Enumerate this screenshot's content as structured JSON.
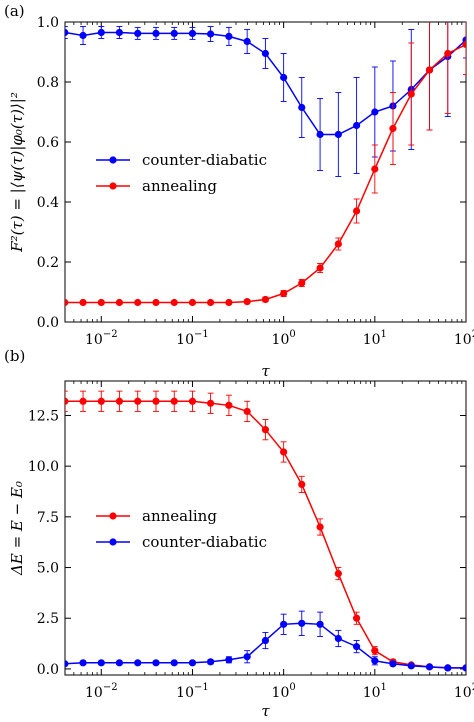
{
  "chart_data": [
    {
      "panel_label": "(a)",
      "type": "line",
      "xscale": "log",
      "xlim": [
        0.004,
        100
      ],
      "ylim": [
        0,
        1.0
      ],
      "xlabel": "τ",
      "ylabel": "F²(τ) = |⟨ψ(τ)|φ₀(τ)⟩|²",
      "xticks": [
        {
          "value": 0.01,
          "base": "10",
          "exp": "−2"
        },
        {
          "value": 0.1,
          "base": "10",
          "exp": "−1"
        },
        {
          "value": 1,
          "base": "10",
          "exp": "0"
        },
        {
          "value": 10,
          "base": "10",
          "exp": "1"
        },
        {
          "value": 100,
          "base": "10",
          "exp": "2"
        }
      ],
      "yticks": [
        {
          "value": 0.0,
          "label": "0.0"
        },
        {
          "value": 0.2,
          "label": "0.2"
        },
        {
          "value": 0.4,
          "label": "0.4"
        },
        {
          "value": 0.6,
          "label": "0.6"
        },
        {
          "value": 0.8,
          "label": "0.8"
        },
        {
          "value": 1.0,
          "label": "1.0"
        }
      ],
      "legend_position": "center-left",
      "series": [
        {
          "name": "counter-diabatic",
          "color": "#0000ff",
          "x": [
            0.00398,
            0.00631,
            0.01,
            0.0158,
            0.0251,
            0.0398,
            0.0631,
            0.1,
            0.158,
            0.251,
            0.398,
            0.631,
            1.0,
            1.58,
            2.51,
            3.98,
            6.31,
            10.0,
            15.8,
            25.1,
            39.8,
            63.1,
            100
          ],
          "y": [
            0.965,
            0.955,
            0.965,
            0.965,
            0.962,
            0.962,
            0.962,
            0.962,
            0.96,
            0.952,
            0.935,
            0.895,
            0.815,
            0.715,
            0.625,
            0.625,
            0.655,
            0.7,
            0.72,
            0.775,
            0.84,
            0.885,
            0.94
          ],
          "err": [
            0.02,
            0.03,
            0.02,
            0.02,
            0.02,
            0.02,
            0.02,
            0.02,
            0.025,
            0.03,
            0.04,
            0.05,
            0.08,
            0.1,
            0.12,
            0.14,
            0.16,
            0.15,
            0.15,
            0.2,
            0.2,
            0.2,
            0.06
          ]
        },
        {
          "name": "annealing",
          "color": "#ff0000",
          "x": [
            0.00398,
            0.00631,
            0.01,
            0.0158,
            0.0251,
            0.0398,
            0.0631,
            0.1,
            0.158,
            0.251,
            0.398,
            0.631,
            1.0,
            1.58,
            2.51,
            3.98,
            6.31,
            10.0,
            15.8,
            25.1,
            39.8,
            63.1,
            100
          ],
          "y": [
            0.065,
            0.065,
            0.065,
            0.065,
            0.065,
            0.065,
            0.065,
            0.065,
            0.065,
            0.065,
            0.068,
            0.075,
            0.095,
            0.13,
            0.18,
            0.26,
            0.37,
            0.51,
            0.645,
            0.76,
            0.84,
            0.895,
            0.925
          ],
          "err": [
            0.003,
            0.003,
            0.003,
            0.003,
            0.003,
            0.003,
            0.003,
            0.003,
            0.003,
            0.004,
            0.005,
            0.008,
            0.01,
            0.012,
            0.015,
            0.02,
            0.04,
            0.08,
            0.12,
            0.17,
            0.2,
            0.2,
            0.1
          ]
        }
      ]
    },
    {
      "panel_label": "(b)",
      "type": "line",
      "xscale": "log",
      "xlim": [
        0.004,
        100
      ],
      "ylim": [
        -0.3,
        14.2
      ],
      "xlabel": "τ",
      "ylabel": "ΔE = E − E₀",
      "xticks": [
        {
          "value": 0.01,
          "base": "10",
          "exp": "−2"
        },
        {
          "value": 0.1,
          "base": "10",
          "exp": "−1"
        },
        {
          "value": 1,
          "base": "10",
          "exp": "0"
        },
        {
          "value": 10,
          "base": "10",
          "exp": "1"
        },
        {
          "value": 100,
          "base": "10",
          "exp": "2"
        }
      ],
      "yticks": [
        {
          "value": 0.0,
          "label": "0.0"
        },
        {
          "value": 2.5,
          "label": "2.5"
        },
        {
          "value": 5.0,
          "label": "5.0"
        },
        {
          "value": 7.5,
          "label": "7.5"
        },
        {
          "value": 10.0,
          "label": "10.0"
        },
        {
          "value": 12.5,
          "label": "12.5"
        }
      ],
      "legend_position": "center-left",
      "series": [
        {
          "name": "annealing",
          "color": "#ff0000",
          "x": [
            0.00398,
            0.00631,
            0.01,
            0.0158,
            0.0251,
            0.0398,
            0.0631,
            0.1,
            0.158,
            0.251,
            0.398,
            0.631,
            1.0,
            1.58,
            2.51,
            3.98,
            6.31,
            10.0,
            15.8,
            25.1,
            39.8,
            63.1,
            100
          ],
          "y": [
            13.2,
            13.2,
            13.2,
            13.2,
            13.2,
            13.2,
            13.2,
            13.2,
            13.1,
            13.0,
            12.7,
            11.8,
            10.7,
            9.1,
            7.0,
            4.7,
            2.5,
            0.9,
            0.35,
            0.2,
            0.1,
            0.05,
            0.05
          ],
          "err": [
            0.5,
            0.5,
            0.5,
            0.5,
            0.5,
            0.5,
            0.5,
            0.5,
            0.5,
            0.5,
            0.5,
            0.5,
            0.5,
            0.4,
            0.4,
            0.3,
            0.3,
            0.2,
            0.1,
            0.05,
            0.05,
            0.05,
            0.05
          ]
        },
        {
          "name": "counter-diabatic",
          "color": "#0000ff",
          "x": [
            0.00398,
            0.00631,
            0.01,
            0.0158,
            0.0251,
            0.0398,
            0.0631,
            0.1,
            0.158,
            0.251,
            0.398,
            0.631,
            1.0,
            1.58,
            2.51,
            3.98,
            6.31,
            10.0,
            15.8,
            25.1,
            39.8,
            63.1,
            100
          ],
          "y": [
            0.25,
            0.3,
            0.3,
            0.3,
            0.3,
            0.3,
            0.3,
            0.3,
            0.35,
            0.45,
            0.6,
            1.4,
            2.2,
            2.25,
            2.2,
            1.5,
            1.1,
            0.4,
            0.25,
            0.15,
            0.1,
            0.05,
            0.05
          ],
          "err": [
            0.05,
            0.05,
            0.05,
            0.05,
            0.05,
            0.05,
            0.05,
            0.05,
            0.1,
            0.15,
            0.3,
            0.4,
            0.5,
            0.6,
            0.6,
            0.4,
            0.3,
            0.2,
            0.1,
            0.05,
            0.05,
            0.05,
            0.05
          ]
        }
      ]
    }
  ]
}
